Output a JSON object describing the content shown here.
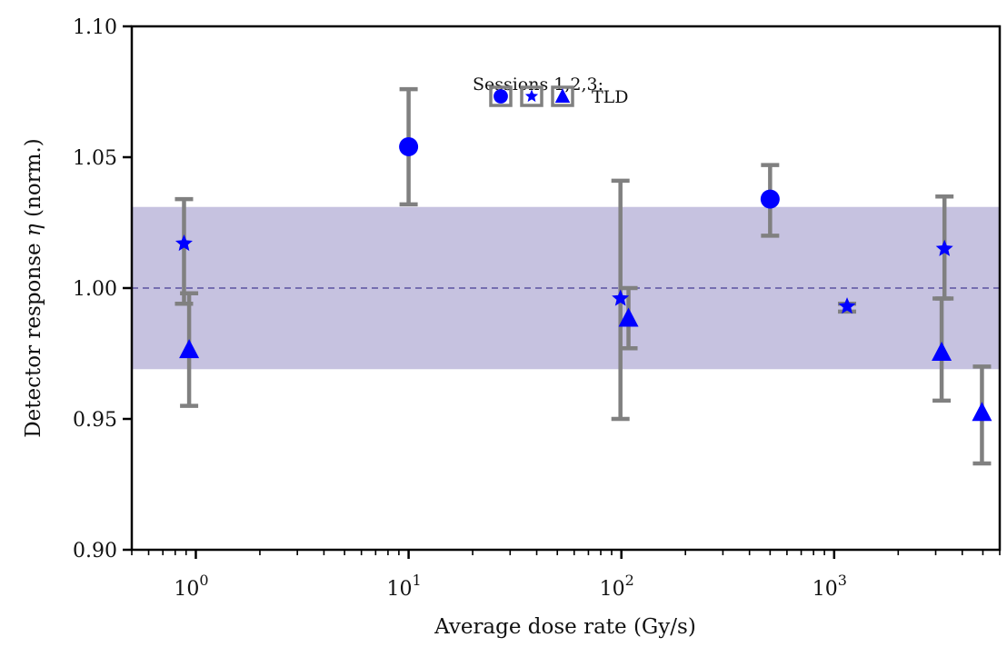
{
  "chart_data": {
    "type": "scatter",
    "title": "",
    "xlabel": "Average dose rate (Gy/s)",
    "ylabel_prefix": "Detector response ",
    "ylabel_symbol": "η",
    "ylabel_suffix": " (norm.)",
    "xscale": "log",
    "xlim": [
      0.5,
      6000
    ],
    "ylim": [
      0.9,
      1.1
    ],
    "xticks": [
      {
        "value": 1,
        "base": "10",
        "exp": "0"
      },
      {
        "value": 10,
        "base": "10",
        "exp": "1"
      },
      {
        "value": 100,
        "base": "10",
        "exp": "2"
      },
      {
        "value": 1000,
        "base": "10",
        "exp": "3"
      }
    ],
    "yticks": [
      {
        "value": 0.9,
        "label": "0.90"
      },
      {
        "value": 0.95,
        "label": "0.95"
      },
      {
        "value": 1.0,
        "label": "1.00"
      },
      {
        "value": 1.05,
        "label": "1.05"
      },
      {
        "value": 1.1,
        "label": "1.10"
      }
    ],
    "grid": false,
    "reference_line": {
      "y": 1.0,
      "style": "dashed",
      "color": "#5a52a0"
    },
    "band": {
      "ymin": 0.969,
      "ymax": 1.031,
      "color": "#c6c2e0"
    },
    "errorbar_color": "#808080",
    "marker_color": "#0000ff",
    "series": [
      {
        "name": "Session 1",
        "marker": "circle",
        "points": [
          {
            "x": 10,
            "y": 1.054,
            "ylo": 1.032,
            "yhi": 1.076
          },
          {
            "x": 500,
            "y": 1.034,
            "ylo": 1.02,
            "yhi": 1.047
          }
        ]
      },
      {
        "name": "Session 2",
        "marker": "star",
        "points": [
          {
            "x": 0.88,
            "y": 1.017,
            "ylo": 0.994,
            "yhi": 1.034
          },
          {
            "x": 99,
            "y": 0.996,
            "ylo": 0.95,
            "yhi": 1.041
          },
          {
            "x": 1150,
            "y": 0.993,
            "ylo": 0.991,
            "yhi": 0.994
          },
          {
            "x": 3300,
            "y": 1.015,
            "ylo": 0.996,
            "yhi": 1.035
          }
        ]
      },
      {
        "name": "Session 3",
        "marker": "triangle",
        "points": [
          {
            "x": 0.93,
            "y": 0.976,
            "ylo": 0.955,
            "yhi": 0.998
          },
          {
            "x": 108,
            "y": 0.988,
            "ylo": 0.977,
            "yhi": 1.0
          },
          {
            "x": 3200,
            "y": 0.975,
            "ylo": 0.957,
            "yhi": 0.996
          },
          {
            "x": 4950,
            "y": 0.952,
            "ylo": 0.933,
            "yhi": 0.97
          }
        ]
      }
    ],
    "legend": {
      "title": "Sessions 1,2,3:",
      "label": "TLD",
      "placement": "top-center"
    }
  }
}
